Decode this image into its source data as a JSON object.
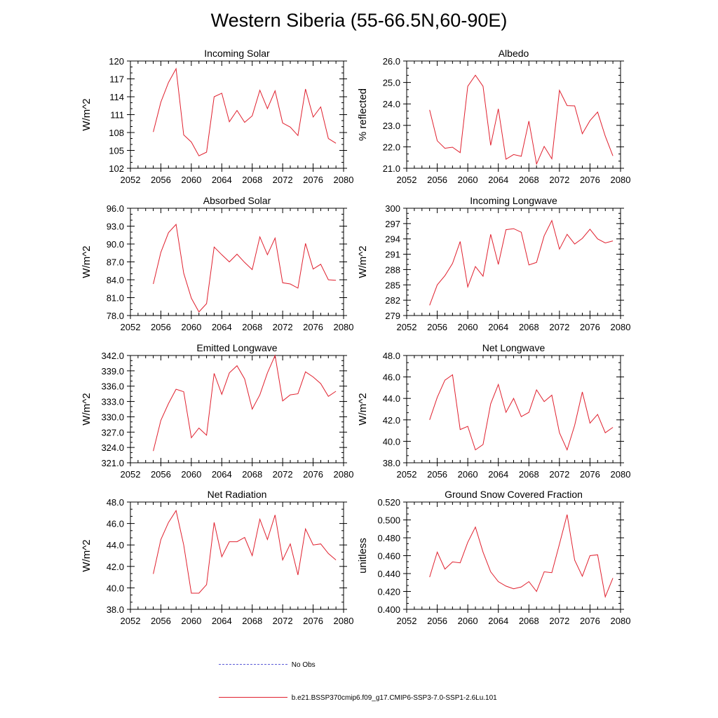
{
  "title": "Western Siberia (55-66.5N,60-90E)",
  "legend": [
    {
      "label": "No Obs",
      "color": "#5b5bd6",
      "style": "dashed"
    },
    {
      "label": "b.e21.BSSP370cmip6.f09_g17.CMIP6-SSP3-7.0-SSP1-2.6Lu.101",
      "color": "#e0202e",
      "style": "solid"
    }
  ],
  "chart_data": [
    {
      "type": "line",
      "title": "Incoming Solar",
      "ylabel": "W/m^2",
      "xlim": [
        2052,
        2080
      ],
      "ylim": [
        102,
        120
      ],
      "xticks": [
        "2052",
        "2056",
        "2060",
        "2064",
        "2068",
        "2072",
        "2076",
        "2080"
      ],
      "yticks": [
        "102",
        "105",
        "108",
        "111",
        "114",
        "117",
        "120"
      ],
      "series": [
        {
          "color": "#e0202e",
          "x": [
            2055,
            2056,
            2057,
            2058,
            2059,
            2060,
            2061,
            2062,
            2063,
            2064,
            2065,
            2066,
            2067,
            2068,
            2069,
            2070,
            2071,
            2072,
            2073,
            2074,
            2075,
            2076,
            2077,
            2078,
            2079
          ],
          "values": [
            108.1,
            113.1,
            116.4,
            118.7,
            107.6,
            106.4,
            104.1,
            104.7,
            114.0,
            114.6,
            109.8,
            111.7,
            109.7,
            110.8,
            115.1,
            112.0,
            115.0,
            109.6,
            108.9,
            107.5,
            115.3,
            110.6,
            112.3,
            107.0,
            106.2
          ]
        }
      ]
    },
    {
      "type": "line",
      "title": "Albedo",
      "ylabel": "% reflected",
      "xlim": [
        2052,
        2080
      ],
      "ylim": [
        21,
        26
      ],
      "xticks": [
        "2052",
        "2056",
        "2060",
        "2064",
        "2068",
        "2072",
        "2076",
        "2080"
      ],
      "yticks": [
        "21.0",
        "22.0",
        "23.0",
        "24.0",
        "25.0",
        "26.0"
      ],
      "series": [
        {
          "color": "#e0202e",
          "x": [
            2055,
            2056,
            2057,
            2058,
            2059,
            2060,
            2061,
            2062,
            2063,
            2064,
            2065,
            2066,
            2067,
            2068,
            2069,
            2070,
            2071,
            2072,
            2073,
            2074,
            2075,
            2076,
            2077,
            2078,
            2079
          ],
          "values": [
            23.72,
            22.28,
            21.93,
            21.98,
            21.73,
            24.82,
            25.34,
            24.82,
            22.07,
            23.77,
            21.42,
            21.64,
            21.56,
            23.2,
            21.2,
            22.02,
            21.44,
            24.63,
            23.92,
            23.91,
            22.61,
            23.22,
            23.62,
            22.5,
            21.58
          ]
        }
      ]
    },
    {
      "type": "line",
      "title": "Absorbed Solar",
      "ylabel": "W/m^2",
      "xlim": [
        2052,
        2080
      ],
      "ylim": [
        78,
        96
      ],
      "xticks": [
        "2052",
        "2056",
        "2060",
        "2064",
        "2068",
        "2072",
        "2076",
        "2080"
      ],
      "yticks": [
        "78.0",
        "81.0",
        "84.0",
        "87.0",
        "90.0",
        "93.0",
        "96.0"
      ],
      "series": [
        {
          "color": "#e0202e",
          "x": [
            2055,
            2056,
            2057,
            2058,
            2059,
            2060,
            2061,
            2062,
            2063,
            2064,
            2065,
            2066,
            2067,
            2068,
            2069,
            2070,
            2071,
            2072,
            2073,
            2074,
            2075,
            2076,
            2077,
            2078,
            2079
          ],
          "values": [
            83.3,
            88.6,
            91.9,
            93.3,
            85.1,
            80.9,
            78.6,
            80.0,
            89.5,
            88.2,
            87.0,
            88.3,
            86.9,
            85.7,
            91.2,
            88.2,
            91.0,
            83.5,
            83.3,
            82.6,
            90.1,
            85.8,
            86.6,
            84.0,
            83.9
          ]
        }
      ]
    },
    {
      "type": "line",
      "title": "Incoming Longwave",
      "ylabel": "W/m^2",
      "xlim": [
        2052,
        2080
      ],
      "ylim": [
        279,
        300
      ],
      "xticks": [
        "2052",
        "2056",
        "2060",
        "2064",
        "2068",
        "2072",
        "2076",
        "2080"
      ],
      "yticks": [
        "279",
        "282",
        "285",
        "288",
        "291",
        "294",
        "297",
        "300"
      ],
      "series": [
        {
          "color": "#e0202e",
          "x": [
            2055,
            2056,
            2057,
            2058,
            2059,
            2060,
            2061,
            2062,
            2063,
            2064,
            2065,
            2066,
            2067,
            2068,
            2069,
            2070,
            2071,
            2072,
            2073,
            2074,
            2075,
            2076,
            2077,
            2078,
            2079
          ],
          "values": [
            281.0,
            285.0,
            286.8,
            289.2,
            293.5,
            284.6,
            288.6,
            286.7,
            294.9,
            289.0,
            295.8,
            296.0,
            295.3,
            288.9,
            289.4,
            294.6,
            297.6,
            292.0,
            294.9,
            293.0,
            294.1,
            295.9,
            294.0,
            293.2,
            293.6
          ]
        }
      ]
    },
    {
      "type": "line",
      "title": "Emitted Longwave",
      "ylabel": "W/m^2",
      "xlim": [
        2052,
        2080
      ],
      "ylim": [
        321,
        342
      ],
      "xticks": [
        "2052",
        "2056",
        "2060",
        "2064",
        "2068",
        "2072",
        "2076",
        "2080"
      ],
      "yticks": [
        "321.0",
        "324.0",
        "327.0",
        "330.0",
        "333.0",
        "336.0",
        "339.0",
        "342.0"
      ],
      "series": [
        {
          "color": "#e0202e",
          "x": [
            2055,
            2056,
            2057,
            2058,
            2059,
            2060,
            2061,
            2062,
            2063,
            2064,
            2065,
            2066,
            2067,
            2068,
            2069,
            2070,
            2071,
            2072,
            2073,
            2074,
            2075,
            2076,
            2077,
            2078,
            2079
          ],
          "values": [
            323.3,
            329.3,
            332.6,
            335.4,
            334.9,
            325.9,
            327.8,
            326.4,
            338.5,
            334.4,
            338.6,
            340.0,
            337.4,
            331.5,
            334.3,
            338.6,
            342.0,
            333.1,
            334.3,
            334.5,
            338.8,
            337.8,
            336.5,
            334.0,
            335.0
          ]
        }
      ]
    },
    {
      "type": "line",
      "title": "Net Longwave",
      "ylabel": "W/m^2",
      "xlim": [
        2052,
        2080
      ],
      "ylim": [
        38,
        48
      ],
      "xticks": [
        "2052",
        "2056",
        "2060",
        "2064",
        "2068",
        "2072",
        "2076",
        "2080"
      ],
      "yticks": [
        "38.0",
        "40.0",
        "42.0",
        "44.0",
        "46.0",
        "48.0"
      ],
      "series": [
        {
          "color": "#e0202e",
          "x": [
            2055,
            2056,
            2057,
            2058,
            2059,
            2060,
            2061,
            2062,
            2063,
            2064,
            2065,
            2066,
            2067,
            2068,
            2069,
            2070,
            2071,
            2072,
            2073,
            2074,
            2075,
            2076,
            2077,
            2078,
            2079
          ],
          "values": [
            42.0,
            44.1,
            45.7,
            46.2,
            41.1,
            41.4,
            39.2,
            39.7,
            43.5,
            45.3,
            42.7,
            44.0,
            42.3,
            42.7,
            44.8,
            43.7,
            44.3,
            40.8,
            39.2,
            41.5,
            44.6,
            41.7,
            42.5,
            40.8,
            41.3
          ]
        }
      ]
    },
    {
      "type": "line",
      "title": "Net Radiation",
      "ylabel": "W/m^2",
      "xlim": [
        2052,
        2080
      ],
      "ylim": [
        38,
        48
      ],
      "xticks": [
        "2052",
        "2056",
        "2060",
        "2064",
        "2068",
        "2072",
        "2076",
        "2080"
      ],
      "yticks": [
        "38.0",
        "40.0",
        "42.0",
        "44.0",
        "46.0",
        "48.0"
      ],
      "series": [
        {
          "color": "#e0202e",
          "x": [
            2055,
            2056,
            2057,
            2058,
            2059,
            2060,
            2061,
            2062,
            2063,
            2064,
            2065,
            2066,
            2067,
            2068,
            2069,
            2070,
            2071,
            2072,
            2073,
            2074,
            2075,
            2076,
            2077,
            2078,
            2079
          ],
          "values": [
            41.3,
            44.5,
            46.1,
            47.2,
            44.0,
            39.5,
            39.5,
            40.3,
            46.1,
            42.9,
            44.3,
            44.3,
            44.7,
            43.0,
            46.4,
            44.5,
            46.8,
            42.6,
            44.1,
            41.2,
            45.5,
            44.0,
            44.1,
            43.2,
            42.6
          ]
        }
      ]
    },
    {
      "type": "line",
      "title": "Ground Snow Covered Fraction",
      "ylabel": "unitless",
      "xlim": [
        2052,
        2080
      ],
      "ylim": [
        0.4,
        0.52
      ],
      "xticks": [
        "2052",
        "2056",
        "2060",
        "2064",
        "2068",
        "2072",
        "2076",
        "2080"
      ],
      "yticks": [
        "0.400",
        "0.420",
        "0.440",
        "0.460",
        "0.480",
        "0.500",
        "0.520"
      ],
      "series": [
        {
          "color": "#e0202e",
          "x": [
            2055,
            2056,
            2057,
            2058,
            2059,
            2060,
            2061,
            2062,
            2063,
            2064,
            2065,
            2066,
            2067,
            2068,
            2069,
            2070,
            2071,
            2072,
            2073,
            2074,
            2075,
            2076,
            2077,
            2078,
            2079
          ],
          "values": [
            0.436,
            0.464,
            0.445,
            0.453,
            0.452,
            0.475,
            0.492,
            0.464,
            0.442,
            0.431,
            0.426,
            0.423,
            0.425,
            0.431,
            0.42,
            0.442,
            0.441,
            0.473,
            0.506,
            0.455,
            0.437,
            0.46,
            0.461,
            0.414,
            0.435
          ]
        }
      ]
    }
  ]
}
